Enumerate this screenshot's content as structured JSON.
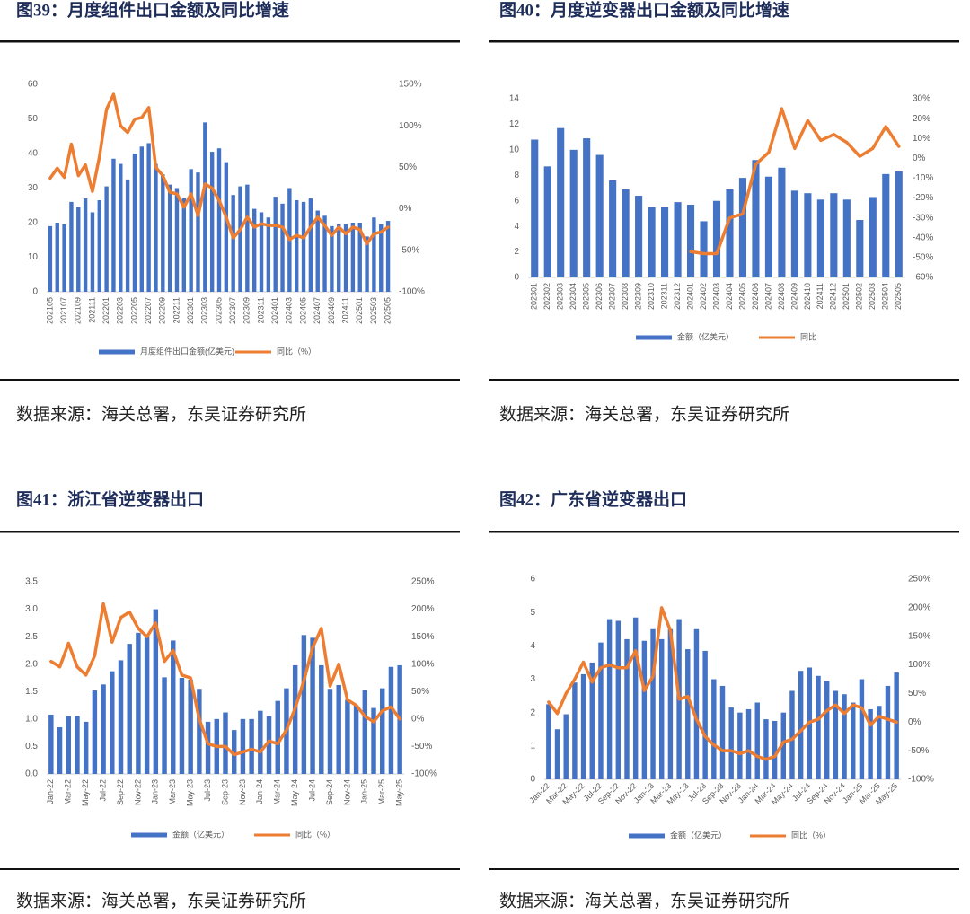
{
  "chart_data": [
    {
      "type": "bar",
      "title": "图39：月度组件出口金额及同比增速",
      "source": "数据来源：海关总署，东吴证券研究所",
      "categories": [
        "202105",
        null,
        "202107",
        null,
        "202109",
        null,
        "202111",
        null,
        "202201",
        null,
        "202203",
        null,
        "202205",
        null,
        "202207",
        null,
        "202209",
        null,
        "202211",
        null,
        "202301",
        null,
        "202303",
        null,
        "202305",
        null,
        "202307",
        null,
        "202309",
        null,
        "202311",
        null,
        "202401",
        null,
        "202403",
        null,
        "202405",
        null,
        "202407",
        null,
        "202409",
        null,
        "202411",
        null,
        "202501",
        null,
        "202503",
        null,
        "202505"
      ],
      "series": [
        {
          "name": "月度组件出口金额(亿美元)",
          "type": "bar",
          "color": "#4472c4",
          "values": [
            19,
            20,
            19.5,
            26,
            24.5,
            27,
            23,
            26.5,
            30.5,
            38.5,
            37,
            32.5,
            40,
            42,
            43,
            37,
            34,
            31,
            30,
            27,
            35.5,
            34.5,
            49,
            40.5,
            41.5,
            37.5,
            28,
            30.5,
            31,
            24,
            23,
            21.5,
            27.5,
            25.5,
            30,
            26.5,
            26,
            27,
            23.5,
            22,
            19,
            19.5,
            19.5,
            20,
            20,
            16,
            21.5,
            19.5,
            20.5
          ]
        },
        {
          "name": "同比（%）",
          "type": "line",
          "axis": "y2",
          "color": "#ed7d31",
          "values": [
            37,
            49,
            38,
            78,
            40,
            53,
            21,
            63,
            120,
            138,
            100,
            92,
            108,
            110,
            122,
            50,
            40,
            20,
            18,
            2,
            18,
            -8,
            30,
            25,
            10,
            -10,
            -35,
            -25,
            -10,
            -22,
            -18,
            -20,
            -20,
            -22,
            -37,
            -32,
            -35,
            -22,
            -10,
            -20,
            -32,
            -22,
            -30,
            -22,
            -25,
            -42,
            -30,
            -28,
            -22
          ]
        }
      ],
      "ylim": [
        0,
        60
      ],
      "yticks": [
        0,
        10,
        20,
        30,
        40,
        50,
        60
      ],
      "y2lim": [
        -100,
        150
      ],
      "y2ticks": [
        {
          "value": -100,
          "label": "-100%"
        },
        {
          "value": -50,
          "label": "-50%"
        },
        {
          "value": 0,
          "label": "0%"
        },
        {
          "value": 50,
          "label": "50%"
        },
        {
          "value": 100,
          "label": "100%"
        },
        {
          "value": 150,
          "label": "150%"
        }
      ]
    },
    {
      "type": "bar",
      "title": "图40：月度逆变器出口金额及同比增速",
      "source": "数据来源：海关总署，东吴证券研究所",
      "categories": [
        "202301",
        "202302",
        "202303",
        "202304",
        "202305",
        "202306",
        "202307",
        "202308",
        "202309",
        "202310",
        "202311",
        "202312",
        "202401",
        "202402",
        "202403",
        "202404",
        "202405",
        "202406",
        "202407",
        "202408",
        "202409",
        "202410",
        "202411",
        "202412",
        "202501",
        "202502",
        "202503",
        "202504",
        "202505"
      ],
      "series": [
        {
          "name": "金额（亿美元）",
          "type": "bar",
          "color": "#4472c4",
          "values": [
            10.8,
            8.7,
            11.7,
            10,
            10.9,
            9.6,
            7.6,
            6.9,
            6.4,
            5.5,
            5.5,
            5.9,
            5.7,
            4.4,
            6.0,
            6.9,
            7.8,
            9.2,
            7.9,
            8.6,
            6.8,
            6.6,
            6.1,
            6.6,
            6.1,
            4.5,
            6.3,
            8.1,
            8.3
          ]
        },
        {
          "name": "同比",
          "type": "line",
          "axis": "y2",
          "color": "#ed7d31",
          "values": [
            null,
            null,
            null,
            null,
            null,
            null,
            null,
            null,
            null,
            null,
            null,
            null,
            -47,
            -48,
            -48,
            -30,
            -28,
            -3,
            3,
            25,
            5,
            19,
            9,
            12,
            8,
            1,
            5,
            16,
            6
          ]
        }
      ],
      "ylim": [
        0,
        14
      ],
      "yticks": [
        0,
        2,
        4,
        6,
        8,
        10,
        12,
        14
      ],
      "y2lim": [
        -60,
        30
      ],
      "y2ticks": [
        {
          "value": -60,
          "label": "-60%"
        },
        {
          "value": -50,
          "label": "-50%"
        },
        {
          "value": -40,
          "label": "-40%"
        },
        {
          "value": -30,
          "label": "-30%"
        },
        {
          "value": -20,
          "label": "-20%"
        },
        {
          "value": -10,
          "label": "-10%"
        },
        {
          "value": 0,
          "label": "0%"
        },
        {
          "value": 10,
          "label": "10%"
        },
        {
          "value": 20,
          "label": "20%"
        },
        {
          "value": 30,
          "label": "30%"
        }
      ]
    },
    {
      "type": "bar",
      "title": "图41：浙江省逆变器出口",
      "source": "数据来源：海关总署，东吴证券研究所",
      "categories": [
        "Jan-22",
        null,
        "Mar-22",
        null,
        "May-22",
        null,
        "Jul-22",
        null,
        "Sep-22",
        null,
        "Nov-22",
        null,
        "Jan-23",
        null,
        "Mar-23",
        null,
        "May-23",
        null,
        "Jul-23",
        null,
        "Sep-23",
        null,
        "Nov-23",
        null,
        "Jan-24",
        null,
        "Mar-24",
        null,
        "May-24",
        null,
        "Jul-24",
        null,
        "Sep-24",
        null,
        "Nov-24",
        null,
        "Jan-25",
        null,
        "Mar-25",
        null,
        "May-25"
      ],
      "series": [
        {
          "name": "金额（亿美元）",
          "type": "bar",
          "color": "#4472c4",
          "values": [
            1.08,
            0.85,
            1.05,
            1.05,
            0.95,
            1.52,
            1.63,
            1.87,
            2.07,
            2.37,
            2.57,
            2.52,
            3.0,
            1.76,
            2.43,
            1.75,
            1.72,
            1.55,
            0.95,
            1.0,
            1.12,
            0.8,
            1.0,
            1.0,
            1.15,
            1.05,
            1.33,
            1.56,
            1.98,
            2.53,
            2.48,
            1.98,
            1.55,
            1.62,
            1.35,
            1.25,
            1.53,
            1.2,
            1.56,
            1.95,
            1.98
          ]
        },
        {
          "name": "同比（%）",
          "type": "line",
          "axis": "y2",
          "color": "#ed7d31",
          "values": [
            105,
            95,
            138,
            95,
            80,
            115,
            210,
            140,
            185,
            195,
            165,
            150,
            175,
            105,
            125,
            80,
            75,
            0,
            -45,
            -50,
            -50,
            -65,
            -60,
            -55,
            -60,
            -40,
            -45,
            -20,
            20,
            70,
            130,
            165,
            60,
            100,
            35,
            25,
            5,
            -5,
            15,
            22,
            0
          ]
        }
      ],
      "ylim": [
        0,
        3.5
      ],
      "yticks": [
        {
          "value": 0,
          "label": "0.0"
        },
        0.5,
        {
          "value": 1,
          "label": "1.0"
        },
        1.5,
        {
          "value": 2,
          "label": "2.0"
        },
        2.5,
        {
          "value": 3,
          "label": "3.0"
        },
        3.5
      ],
      "y2lim": [
        -100,
        250
      ],
      "y2ticks": [
        {
          "value": -100,
          "label": "-100%"
        },
        {
          "value": -50,
          "label": "-50%"
        },
        {
          "value": 0,
          "label": "0%"
        },
        {
          "value": 50,
          "label": "50%"
        },
        {
          "value": 100,
          "label": "100%"
        },
        {
          "value": 150,
          "label": "150%"
        },
        {
          "value": 200,
          "label": "200%"
        },
        {
          "value": 250,
          "label": "250%"
        }
      ]
    },
    {
      "type": "bar",
      "title": "图42：广东省逆变器出口",
      "source": "数据来源：海关总署，东吴证券研究所",
      "categories": [
        "Jan-22",
        null,
        "Mar-22",
        null,
        "May-22",
        null,
        "Jul-22",
        null,
        "Sep-22",
        null,
        "Nov-22",
        null,
        "Jan-23",
        null,
        "Mar-23",
        null,
        "May-23",
        null,
        "Jul-23",
        null,
        "Sep-23",
        null,
        "Nov-23",
        null,
        "Jan-24",
        null,
        "Mar-24",
        null,
        "May-24",
        null,
        "Jul-24",
        null,
        "Sep-24",
        null,
        "Nov-24",
        null,
        "Jan-25",
        null,
        "Mar-25",
        null,
        "May-25"
      ],
      "series": [
        {
          "name": "金额（亿美元）",
          "type": "bar",
          "color": "#4472c4",
          "values": [
            2.25,
            1.5,
            1.95,
            2.9,
            3.15,
            3.5,
            4.1,
            4.8,
            4.75,
            4.2,
            4.85,
            4.15,
            4.5,
            4.2,
            4.5,
            4.8,
            3.9,
            4.5,
            3.85,
            3.0,
            2.8,
            2.15,
            2.0,
            2.1,
            2.3,
            1.8,
            1.75,
            2.0,
            2.65,
            3.25,
            3.35,
            3.1,
            2.95,
            2.65,
            2.55,
            2.3,
            3.0,
            2.1,
            2.2,
            2.8,
            3.2
          ]
        },
        {
          "name": "同比（%）",
          "type": "line",
          "axis": "y2",
          "color": "#ed7d31",
          "values": [
            35,
            15,
            50,
            75,
            105,
            70,
            95,
            100,
            95,
            95,
            125,
            55,
            80,
            200,
            160,
            40,
            45,
            5,
            -25,
            -40,
            -50,
            -50,
            -55,
            -50,
            -60,
            -65,
            -60,
            -35,
            -30,
            -15,
            0,
            5,
            20,
            30,
            15,
            30,
            25,
            -5,
            10,
            5,
            0
          ]
        }
      ],
      "ylim": [
        0,
        6
      ],
      "yticks": [
        0,
        1,
        2,
        3,
        4,
        5,
        6
      ],
      "y2lim": [
        -100,
        250
      ],
      "y2ticks": [
        {
          "value": -100,
          "label": "-100%"
        },
        {
          "value": -50,
          "label": "-50%"
        },
        {
          "value": 0,
          "label": "0%"
        },
        {
          "value": 50,
          "label": "50%"
        },
        {
          "value": 100,
          "label": "100%"
        },
        {
          "value": 150,
          "label": "150%"
        },
        {
          "value": 200,
          "label": "200%"
        },
        {
          "value": 250,
          "label": "250%"
        }
      ]
    }
  ]
}
